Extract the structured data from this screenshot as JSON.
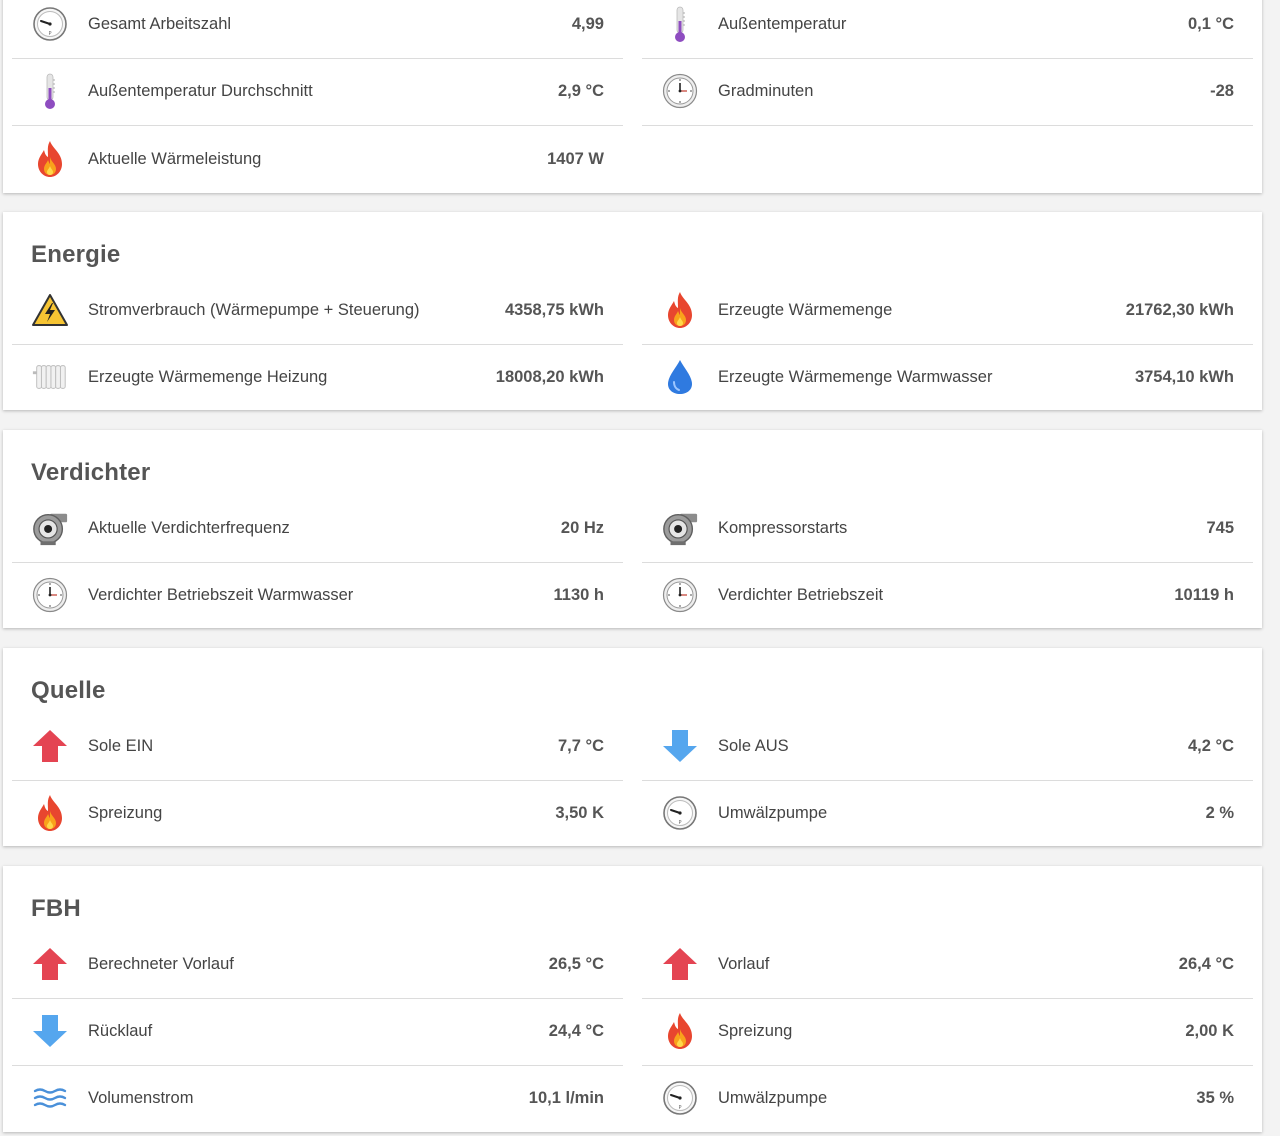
{
  "overview": {
    "rows": [
      {
        "label": "Gesamt Arbeitszahl",
        "value": "4,99",
        "icon": "gauge-icon"
      },
      {
        "label": "Außentemperatur",
        "value": "0,1 °C",
        "icon": "thermometer-icon"
      },
      {
        "label": "Außentemperatur Durchschnitt",
        "value": "2,9 °C",
        "icon": "thermometer-icon"
      },
      {
        "label": "Gradminuten",
        "value": "-28",
        "icon": "clock-icon"
      },
      {
        "label": "Aktuelle Wärmeleistung",
        "value": "1407 W",
        "icon": "flame-icon"
      }
    ]
  },
  "energie": {
    "title": "Energie",
    "rows": [
      {
        "label": "Stromverbrauch (Wärmepumpe + Steuerung)",
        "value": "4358,75 kWh",
        "icon": "high-voltage-icon"
      },
      {
        "label": "Erzeugte Wärmemenge",
        "value": "21762,30 kWh",
        "icon": "flame-icon"
      },
      {
        "label": "Erzeugte Wärmemenge Heizung",
        "value": "18008,20 kWh",
        "icon": "radiator-icon"
      },
      {
        "label": "Erzeugte Wärmemenge Warmwasser",
        "value": "3754,10 kWh",
        "icon": "water-drop-icon"
      }
    ]
  },
  "verdichter": {
    "title": "Verdichter",
    "rows": [
      {
        "label": "Aktuelle Verdichterfrequenz",
        "value": "20 Hz",
        "icon": "compressor-icon"
      },
      {
        "label": "Kompressorstarts",
        "value": "745",
        "icon": "compressor-icon"
      },
      {
        "label": "Verdichter Betriebszeit Warmwasser",
        "value": "1130 h",
        "icon": "clock-icon"
      },
      {
        "label": "Verdichter Betriebszeit",
        "value": "10119 h",
        "icon": "clock-icon"
      }
    ]
  },
  "quelle": {
    "title": "Quelle",
    "rows": [
      {
        "label": "Sole EIN",
        "value": "7,7 °C",
        "icon": "arrow-up-icon"
      },
      {
        "label": "Sole AUS",
        "value": "4,2 °C",
        "icon": "arrow-down-icon"
      },
      {
        "label": "Spreizung",
        "value": "3,50 K",
        "icon": "flame-icon"
      },
      {
        "label": "Umwälzpumpe",
        "value": "2 %",
        "icon": "gauge-icon"
      }
    ]
  },
  "fbh": {
    "title": "FBH",
    "rows": [
      {
        "label": "Berechneter Vorlauf",
        "value": "26,5 °C",
        "icon": "arrow-up-icon"
      },
      {
        "label": "Vorlauf",
        "value": "26,4 °C",
        "icon": "arrow-up-icon"
      },
      {
        "label": "Rücklauf",
        "value": "24,4 °C",
        "icon": "arrow-down-icon"
      },
      {
        "label": "Spreizung",
        "value": "2,00 K",
        "icon": "flame-icon"
      },
      {
        "label": "Volumenstrom",
        "value": "10,1 l/min",
        "icon": "waves-icon"
      },
      {
        "label": "Umwälzpumpe",
        "value": "35 %",
        "icon": "gauge-icon"
      }
    ]
  },
  "colors": {
    "flame": "#e8462f",
    "arrow_up": "#e44452",
    "arrow_down": "#55a6ee",
    "water": "#2f7ae0",
    "thermo": "#8e4dc0"
  }
}
